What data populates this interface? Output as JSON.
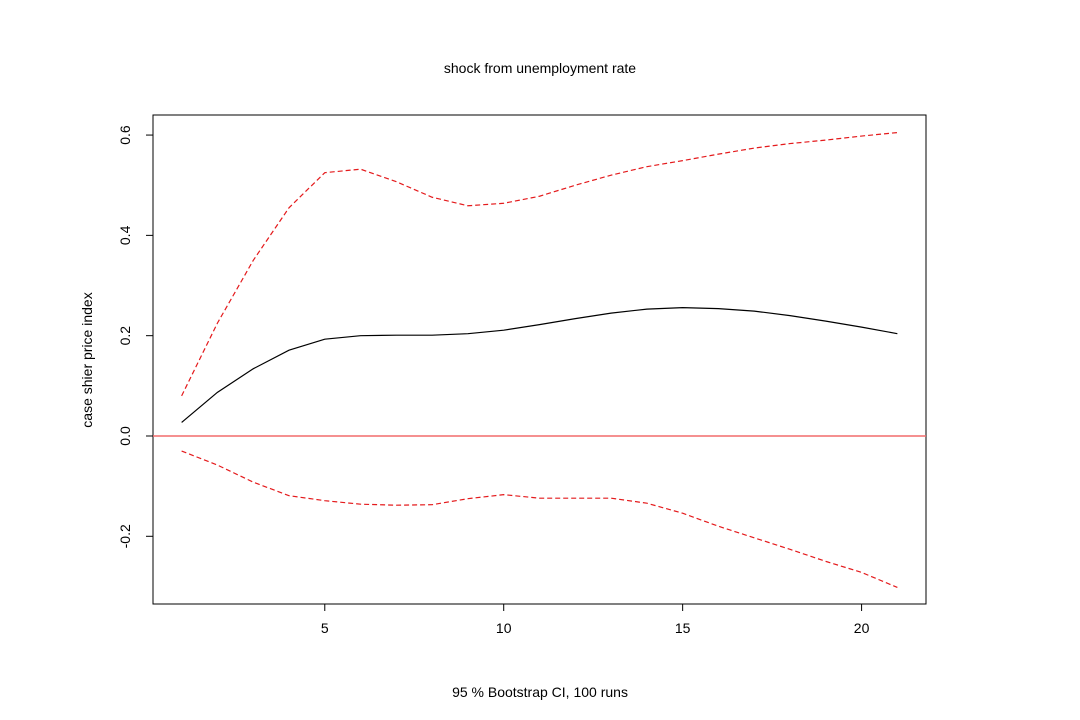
{
  "chart_data": {
    "type": "line",
    "title": "shock from unemployment rate",
    "xlabel": "95 % Bootstrap CI,  100 runs",
    "ylabel": "case shier price index",
    "xlim": [
      0.2,
      21.8
    ],
    "ylim": [
      -0.335,
      0.64
    ],
    "x_ticks": [
      5,
      10,
      15,
      20
    ],
    "y_ticks": [
      -0.2,
      0.0,
      0.2,
      0.4,
      0.6
    ],
    "x_tick_labels": [
      "5",
      "10",
      "15",
      "20"
    ],
    "y_tick_labels": [
      "-0.2",
      "0.0",
      "0.2",
      "0.4",
      "0.6"
    ],
    "grid": false,
    "legend": "none",
    "x": [
      1,
      2,
      3,
      4,
      5,
      6,
      7,
      8,
      9,
      10,
      11,
      12,
      13,
      14,
      15,
      16,
      17,
      18,
      19,
      20,
      21
    ],
    "series": [
      {
        "role": "irf",
        "color": "#000000",
        "dash": false,
        "values": [
          0.027,
          0.087,
          0.134,
          0.171,
          0.193,
          0.2,
          0.201,
          0.201,
          0.204,
          0.211,
          0.222,
          0.234,
          0.245,
          0.253,
          0.256,
          0.254,
          0.249,
          0.24,
          0.229,
          0.217,
          0.204
        ]
      },
      {
        "role": "upper",
        "color": "#e41a1c",
        "dash": true,
        "values": [
          0.08,
          0.225,
          0.35,
          0.455,
          0.525,
          0.532,
          0.507,
          0.476,
          0.459,
          0.464,
          0.478,
          0.5,
          0.52,
          0.537,
          0.549,
          0.562,
          0.574,
          0.583,
          0.59,
          0.598,
          0.605
        ]
      },
      {
        "role": "lower",
        "color": "#e41a1c",
        "dash": true,
        "values": [
          -0.03,
          -0.058,
          -0.092,
          -0.119,
          -0.129,
          -0.136,
          -0.138,
          -0.137,
          -0.125,
          -0.117,
          -0.124,
          -0.124,
          -0.124,
          -0.134,
          -0.154,
          -0.18,
          -0.203,
          -0.226,
          -0.25,
          -0.272,
          -0.302
        ]
      }
    ],
    "zero_line": {
      "y": 0,
      "color": "#f26b6b"
    }
  }
}
